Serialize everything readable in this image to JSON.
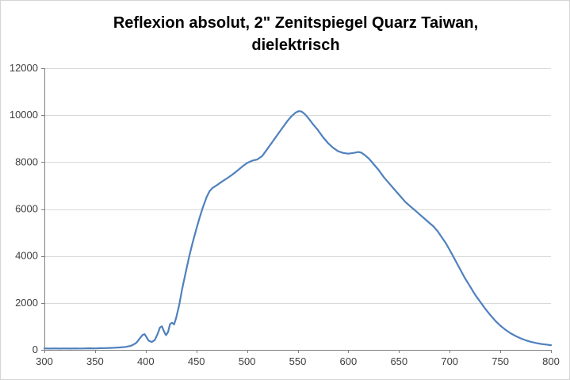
{
  "chart_data": {
    "type": "line",
    "title": "Reflexion absolut, 2\" Zenitspiegel Quarz Taiwan, dielektrisch",
    "title_lines": [
      "Reflexion absolut, 2\" Zenitspiegel Quarz Taiwan,",
      "dielektrisch"
    ],
    "xlabel": "",
    "ylabel": "",
    "xlim": [
      300,
      800
    ],
    "ylim": [
      0,
      12000
    ],
    "x_ticks": [
      300,
      350,
      400,
      450,
      500,
      550,
      600,
      650,
      700,
      750,
      800
    ],
    "y_ticks": [
      0,
      2000,
      4000,
      6000,
      8000,
      10000,
      12000
    ],
    "grid": "horizontal",
    "legend": "none",
    "colors": {
      "line": "#4F81BD",
      "grid": "#D9D9D9",
      "axis": "#808080",
      "tick_text": "#3f3f3f"
    },
    "series": [
      {
        "points": [
          [
            300,
            60
          ],
          [
            305,
            55
          ],
          [
            310,
            60
          ],
          [
            315,
            55
          ],
          [
            320,
            62
          ],
          [
            325,
            55
          ],
          [
            330,
            60
          ],
          [
            335,
            58
          ],
          [
            340,
            62
          ],
          [
            345,
            66
          ],
          [
            350,
            60
          ],
          [
            355,
            70
          ],
          [
            360,
            76
          ],
          [
            365,
            82
          ],
          [
            370,
            92
          ],
          [
            375,
            104
          ],
          [
            380,
            125
          ],
          [
            385,
            165
          ],
          [
            388,
            225
          ],
          [
            391,
            310
          ],
          [
            394,
            480
          ],
          [
            397,
            640
          ],
          [
            399,
            665
          ],
          [
            401,
            520
          ],
          [
            403,
            390
          ],
          [
            406,
            335
          ],
          [
            409,
            420
          ],
          [
            412,
            700
          ],
          [
            414,
            950
          ],
          [
            416,
            1005
          ],
          [
            418,
            790
          ],
          [
            420,
            625
          ],
          [
            422,
            750
          ],
          [
            424,
            1100
          ],
          [
            426,
            1155
          ],
          [
            428,
            1085
          ],
          [
            430,
            1350
          ],
          [
            433,
            1900
          ],
          [
            436,
            2600
          ],
          [
            440,
            3400
          ],
          [
            443,
            4000
          ],
          [
            446,
            4520
          ],
          [
            450,
            5150
          ],
          [
            453,
            5600
          ],
          [
            456,
            6020
          ],
          [
            460,
            6500
          ],
          [
            463,
            6760
          ],
          [
            466,
            6900
          ],
          [
            470,
            7010
          ],
          [
            475,
            7160
          ],
          [
            480,
            7300
          ],
          [
            485,
            7450
          ],
          [
            490,
            7620
          ],
          [
            495,
            7800
          ],
          [
            500,
            7960
          ],
          [
            505,
            8060
          ],
          [
            510,
            8110
          ],
          [
            515,
            8260
          ],
          [
            520,
            8560
          ],
          [
            525,
            8860
          ],
          [
            530,
            9160
          ],
          [
            535,
            9460
          ],
          [
            540,
            9760
          ],
          [
            544,
            9960
          ],
          [
            548,
            10110
          ],
          [
            551,
            10170
          ],
          [
            554,
            10150
          ],
          [
            557,
            10050
          ],
          [
            560,
            9900
          ],
          [
            565,
            9620
          ],
          [
            570,
            9360
          ],
          [
            575,
            9060
          ],
          [
            580,
            8810
          ],
          [
            585,
            8610
          ],
          [
            590,
            8460
          ],
          [
            595,
            8390
          ],
          [
            600,
            8360
          ],
          [
            605,
            8390
          ],
          [
            610,
            8430
          ],
          [
            613,
            8400
          ],
          [
            616,
            8310
          ],
          [
            620,
            8160
          ],
          [
            625,
            7910
          ],
          [
            630,
            7660
          ],
          [
            635,
            7360
          ],
          [
            640,
            7110
          ],
          [
            644,
            6910
          ],
          [
            648,
            6710
          ],
          [
            652,
            6510
          ],
          [
            656,
            6310
          ],
          [
            660,
            6160
          ],
          [
            664,
            6010
          ],
          [
            668,
            5860
          ],
          [
            672,
            5710
          ],
          [
            676,
            5560
          ],
          [
            680,
            5410
          ],
          [
            684,
            5260
          ],
          [
            688,
            5060
          ],
          [
            692,
            4810
          ],
          [
            696,
            4560
          ],
          [
            700,
            4260
          ],
          [
            705,
            3860
          ],
          [
            710,
            3460
          ],
          [
            715,
            3060
          ],
          [
            720,
            2710
          ],
          [
            725,
            2360
          ],
          [
            730,
            2060
          ],
          [
            735,
            1760
          ],
          [
            740,
            1490
          ],
          [
            745,
            1240
          ],
          [
            750,
            1030
          ],
          [
            755,
            860
          ],
          [
            760,
            710
          ],
          [
            765,
            590
          ],
          [
            770,
            490
          ],
          [
            775,
            410
          ],
          [
            780,
            345
          ],
          [
            785,
            295
          ],
          [
            790,
            255
          ],
          [
            795,
            225
          ],
          [
            800,
            200
          ]
        ]
      }
    ]
  }
}
